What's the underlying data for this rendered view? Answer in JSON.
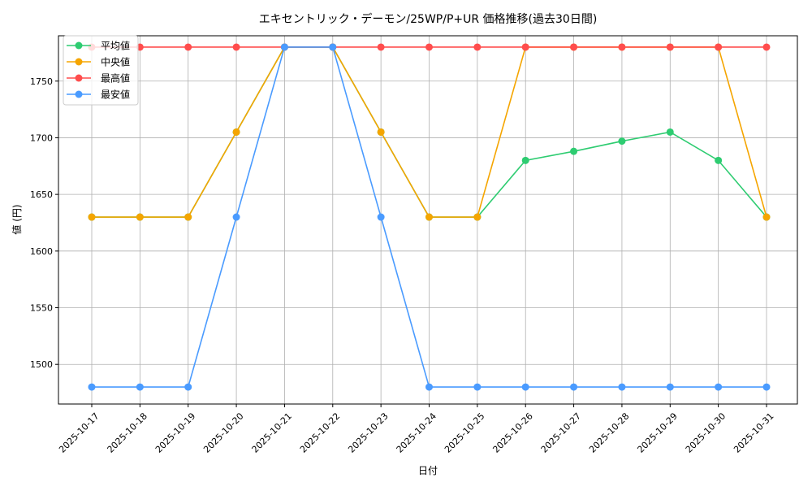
{
  "chart_data": {
    "type": "line",
    "title": "エキセントリック・デーモン/25WP/P+UR 価格推移(過去30日間)",
    "xlabel": "日付",
    "ylabel": "値 (円)",
    "x": [
      "2025-10-17",
      "2025-10-18",
      "2025-10-19",
      "2025-10-20",
      "2025-10-21",
      "2025-10-22",
      "2025-10-23",
      "2025-10-24",
      "2025-10-25",
      "2025-10-26",
      "2025-10-27",
      "2025-10-28",
      "2025-10-29",
      "2025-10-30",
      "2025-10-31"
    ],
    "ylim": [
      1465,
      1790
    ],
    "yticks": [
      1500,
      1550,
      1600,
      1650,
      1700,
      1750
    ],
    "grid": true,
    "legend_position": "top-left",
    "series": [
      {
        "name": "平均値",
        "color": "#2ecc71",
        "values": [
          1630,
          1630,
          1630,
          1705,
          1780,
          1780,
          1705,
          1630,
          1630,
          1680,
          1688,
          1697,
          1705,
          1680,
          1630
        ]
      },
      {
        "name": "中央値",
        "color": "#f5a500",
        "values": [
          1630,
          1630,
          1630,
          1705,
          1780,
          1780,
          1705,
          1630,
          1630,
          1780,
          1780,
          1780,
          1780,
          1780,
          1630
        ]
      },
      {
        "name": "最高値",
        "color": "#ff4d4d",
        "values": [
          1780,
          1780,
          1780,
          1780,
          1780,
          1780,
          1780,
          1780,
          1780,
          1780,
          1780,
          1780,
          1780,
          1780,
          1780
        ]
      },
      {
        "name": "最安値",
        "color": "#4a9bff",
        "values": [
          1480,
          1480,
          1480,
          1630,
          1780,
          1780,
          1630,
          1480,
          1480,
          1480,
          1480,
          1480,
          1480,
          1480,
          1480
        ]
      }
    ]
  }
}
